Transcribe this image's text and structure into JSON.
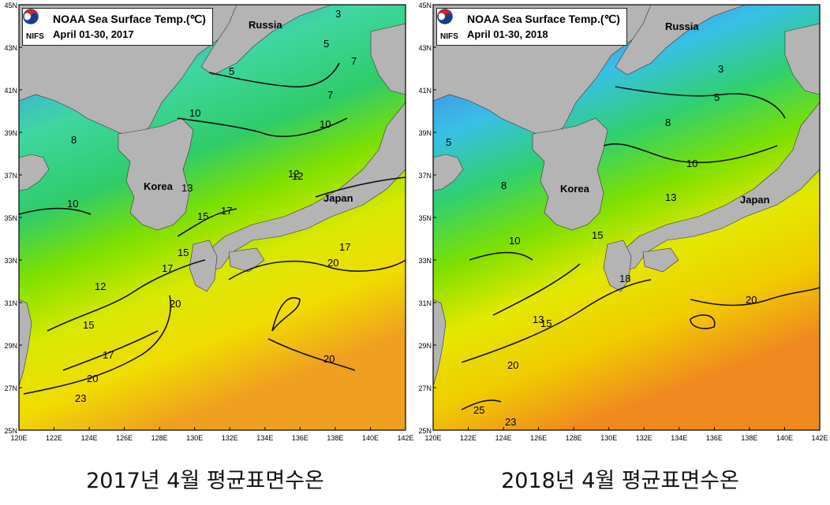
{
  "maps": [
    {
      "title": "NOAA Sea Surface Temp.(℃)",
      "date": "April 01-30, 2017",
      "logo_text": "NIFS",
      "caption": "2017년 4월 평균표면수온",
      "places": [
        "Russia",
        "Korea",
        "Japan"
      ],
      "contour_labels": [
        "3",
        "5",
        "7",
        "7",
        "5",
        "10",
        "10",
        "8",
        "10",
        "12",
        "12",
        "13",
        "15",
        "15",
        "17",
        "17",
        "17",
        "20",
        "20",
        "20",
        "20",
        "12",
        "15",
        "17",
        "23"
      ]
    },
    {
      "title": "NOAA Sea Surface Temp.(℃)",
      "date": "April 01-30, 2018",
      "logo_text": "NIFS",
      "caption": "2018년 4월 평균표면수온",
      "places": [
        "Russia",
        "Korea",
        "Japan"
      ],
      "contour_labels": [
        "3",
        "5",
        "5",
        "8",
        "10",
        "13",
        "8",
        "10",
        "13",
        "15",
        "18",
        "15",
        "20",
        "20",
        "23",
        "25"
      ]
    }
  ],
  "axes": {
    "lat_labels": [
      "45N",
      "43N",
      "41N",
      "39N",
      "37N",
      "35N",
      "33N",
      "31N",
      "29N",
      "27N",
      "25N"
    ],
    "lon_labels": [
      "120E",
      "122E",
      "124E",
      "126E",
      "128E",
      "130E",
      "132E",
      "134E",
      "136E",
      "138E",
      "140E",
      "142E"
    ]
  },
  "colors": {
    "land": "#b4b4b4",
    "cold": "#8a6ad0",
    "cool": "#3aa0e8",
    "mid": "#3fd68a",
    "warm": "#7ee000",
    "hot": "#f0e000",
    "hottest": "#f09020"
  }
}
